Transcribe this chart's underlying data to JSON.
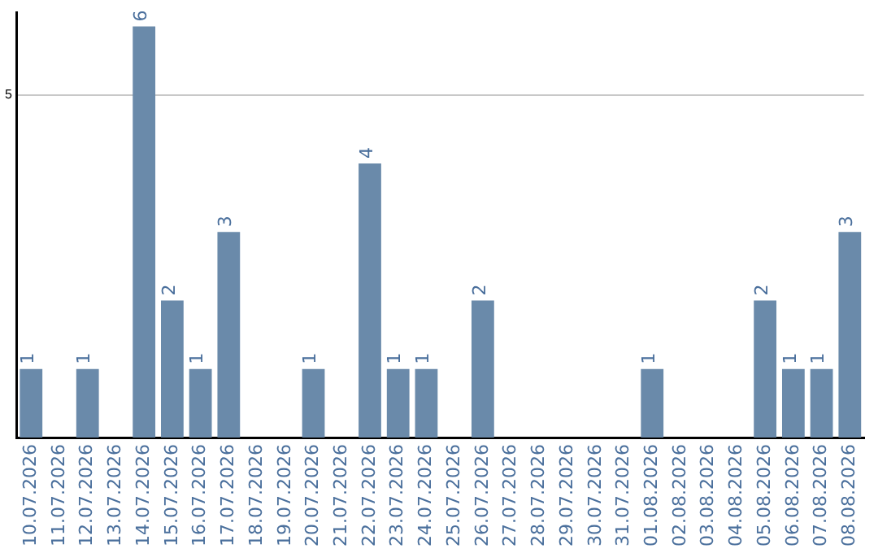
{
  "chart_data": {
    "type": "bar",
    "categories": [
      "10.07.2026",
      "11.07.2026",
      "12.07.2026",
      "13.07.2026",
      "14.07.2026",
      "15.07.2026",
      "16.07.2026",
      "17.07.2026",
      "18.07.2026",
      "19.07.2026",
      "20.07.2026",
      "21.07.2026",
      "22.07.2026",
      "23.07.2026",
      "24.07.2026",
      "25.07.2026",
      "26.07.2026",
      "27.07.2026",
      "28.07.2026",
      "29.07.2026",
      "30.07.2026",
      "31.07.2026",
      "01.08.2026",
      "02.08.2026",
      "03.08.2026",
      "04.08.2026",
      "05.08.2026",
      "06.08.2026",
      "07.08.2026",
      "08.08.2026"
    ],
    "values": [
      1,
      0,
      1,
      0,
      6,
      2,
      1,
      3,
      0,
      0,
      1,
      0,
      4,
      1,
      1,
      0,
      2,
      0,
      0,
      0,
      0,
      0,
      1,
      0,
      0,
      0,
      2,
      1,
      1,
      3
    ],
    "value_labels": [
      "1",
      null,
      "1",
      null,
      "6",
      "2",
      "1",
      "3",
      null,
      null,
      "1",
      null,
      "4",
      "1",
      "1",
      null,
      "2",
      null,
      null,
      null,
      null,
      null,
      "1",
      null,
      null,
      null,
      "2",
      "1",
      "1",
      "3"
    ],
    "color": "#6a8aaa",
    "ylim": [
      0,
      6.2
    ],
    "yticks": [
      5
    ],
    "grid": "y",
    "legend": false
  }
}
